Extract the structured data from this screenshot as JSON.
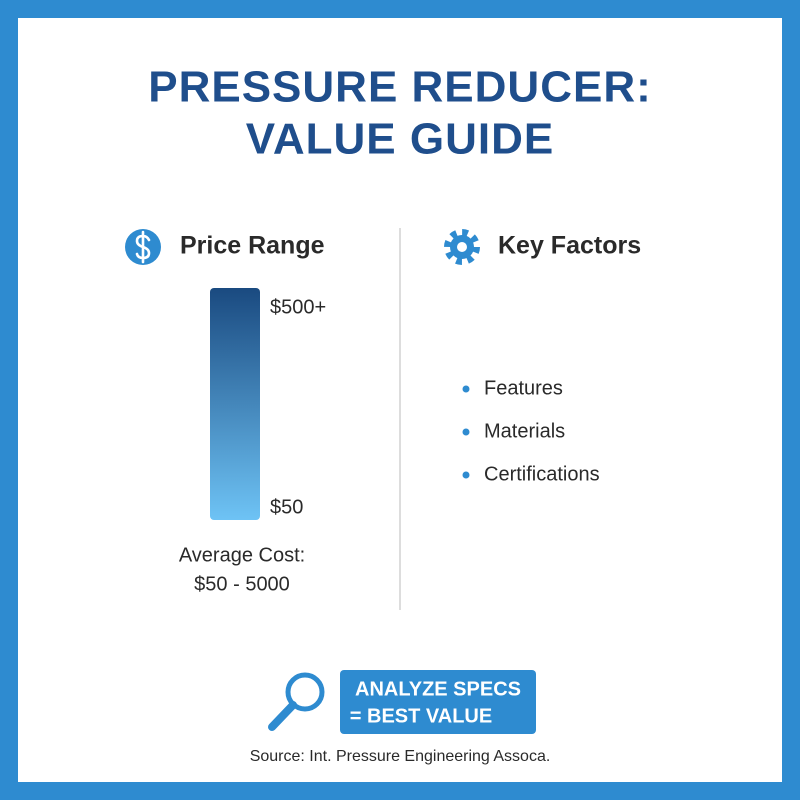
{
  "title": {
    "lines": [
      "PRESSURE REDUCER:",
      "VALUE GUIDE"
    ]
  },
  "price_range": {
    "heading": "Price Range",
    "top_label": "$500+",
    "bottom_label": "$50",
    "average_label": "Average Cost:",
    "average_value": "$50 - 5000"
  },
  "key_factors": {
    "heading": "Key Factors",
    "items": [
      "Features",
      "Materials",
      "Certifications"
    ]
  },
  "callout": {
    "lines": [
      "ANALYZE SPECS",
      "= BEST VALUE"
    ]
  },
  "source": "Source: Int. Pressure Engineering Assoca."
}
